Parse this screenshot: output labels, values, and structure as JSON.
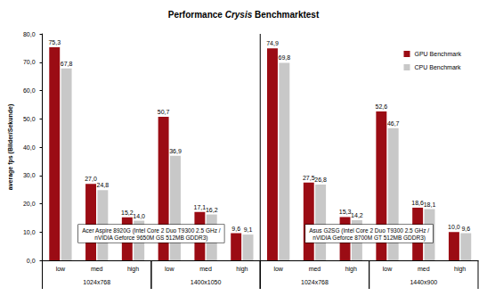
{
  "chart_data": {
    "type": "bar",
    "title": "Performance Crysis Benchmarktest",
    "y_label": "average fps (Bilder/Sekunde)",
    "categories": [
      "low",
      "med",
      "high",
      "low",
      "med",
      "high",
      "low",
      "med",
      "high",
      "low",
      "med",
      "high"
    ],
    "category_groups": [
      "1024x768",
      "1024x768",
      "1024x768",
      "1400x1050",
      "1400x1050",
      "1400x1050",
      "1024x768",
      "1024x768",
      "1024x768",
      "1440x900",
      "1440x900",
      "1440x900"
    ],
    "systems": [
      "Acer Aspire 8920G (Intel Core 2 Duo T9300 2.5 GHz /\nnVIDIA Geforce 9650M GS 512MB GDDR3)",
      "Acer Aspire 8920G (Intel Core 2 Duo T9300 2.5 GHz /\nnVIDIA Geforce 9650M GS 512MB GDDR3)",
      "Acer Aspire 8920G (Intel Core 2 Duo T9300 2.5 GHz /\nnVIDIA Geforce 9650M GS 512MB GDDR3)",
      "Acer Aspire 8920G (Intel Core 2 Duo T9300 2.5 GHz /\nnVIDIA Geforce 9650M GS 512MB GDDR3)",
      "Acer Aspire 8920G (Intel Core 2 Duo T9300 2.5 GHz /\nnVIDIA Geforce 9650M GS 512MB GDDR3)",
      "Acer Aspire 8920G (Intel Core 2 Duo T9300 2.5 GHz /\nnVIDIA Geforce 9650M GS 512MB GDDR3)",
      "Asus G2SG (Intel Core 2 Duo T9300 2.5 GHz /\nnVIDIA Geforce 8700M GT 512MB GDDR3)",
      "Asus G2SG (Intel Core 2 Duo T9300 2.5 GHz /\nnVIDIA Geforce 8700M GT 512MB GDDR3)",
      "Asus G2SG (Intel Core 2 Duo T9300 2.5 GHz /\nnVIDIA Geforce 8700M GT 512MB GDDR3)",
      "Asus G2SG (Intel Core 2 Duo T9300 2.5 GHz /\nnVIDIA Geforce 8700M GT 512MB GDDR3)",
      "Asus G2SG (Intel Core 2 Duo T9300 2.5 GHz /\nnVIDIA Geforce 8700M GT 512MB GDDR3)",
      "Asus G2SG (Intel Core 2 Duo T9300 2.5 GHz /\nnVIDIA Geforce 8700M GT 512MB GDDR3)"
    ],
    "series": [
      {
        "name": "GPU Benchmark",
        "color": "#9b0c14",
        "values": [
          75.3,
          27.0,
          15.2,
          50.7,
          17.1,
          9.6,
          74.9,
          27.5,
          15.3,
          52.6,
          18.6,
          10.0
        ],
        "value_labels": [
          "75,3",
          "27,0",
          "15,2",
          "50,7",
          "17,1",
          "9,6",
          "74,9",
          "27,5",
          "15,3",
          "52,6",
          "18,6",
          "10,0"
        ]
      },
      {
        "name": "CPU Benchmark",
        "color": "#c8c8c8",
        "values": [
          67.8,
          24.8,
          14.0,
          36.9,
          16.2,
          9.1,
          69.8,
          26.8,
          14.2,
          46.7,
          18.1,
          9.6
        ],
        "value_labels": [
          "67,8",
          "24,8",
          "14,0",
          "36,9",
          "16,2",
          "9,1",
          "69,8",
          "26,8",
          "14,2",
          "46,7",
          "18,1",
          "9,6"
        ]
      }
    ],
    "ylim": [
      0,
      80
    ],
    "yticks": [
      {
        "value": 0,
        "label": "0,0"
      },
      {
        "value": 10,
        "label": "10,0"
      },
      {
        "value": 20,
        "label": "20,0"
      },
      {
        "value": 30,
        "label": "30,0"
      },
      {
        "value": 40,
        "label": "40,0"
      },
      {
        "value": 50,
        "label": "50,0"
      },
      {
        "value": 60,
        "label": "60,0"
      },
      {
        "value": 70,
        "label": "70,0"
      },
      {
        "value": 80,
        "label": "80,0"
      }
    ],
    "grid": false,
    "legend": "top-right",
    "data_labels": true
  }
}
